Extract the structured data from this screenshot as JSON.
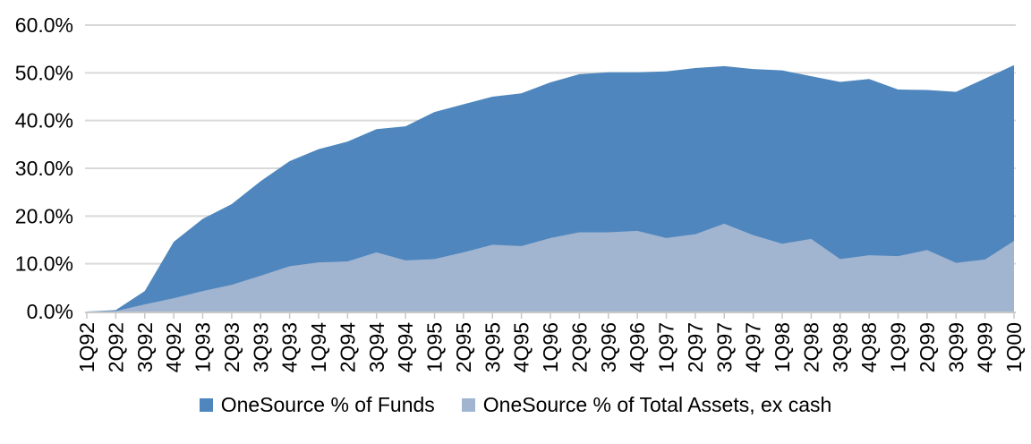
{
  "chart_data": {
    "type": "area",
    "title": "",
    "xlabel": "",
    "ylabel": "",
    "ylim": [
      0,
      60
    ],
    "ytick_step": 10,
    "ytick_labels": [
      "0.0%",
      "10.0%",
      "20.0%",
      "30.0%",
      "40.0%",
      "50.0%",
      "60.0%"
    ],
    "grid": true,
    "legend_position": "bottom",
    "overlay_mode": "overlaid (not stacked); second series drawn in front of first",
    "categories": [
      "1Q92",
      "2Q92",
      "3Q92",
      "4Q92",
      "1Q93",
      "2Q93",
      "3Q93",
      "4Q93",
      "1Q94",
      "2Q94",
      "3Q94",
      "4Q94",
      "1Q95",
      "2Q95",
      "3Q95",
      "4Q95",
      "1Q96",
      "2Q96",
      "3Q96",
      "4Q96",
      "1Q97",
      "2Q97",
      "3Q97",
      "4Q97",
      "1Q98",
      "2Q98",
      "3Q98",
      "4Q98",
      "1Q99",
      "2Q99",
      "3Q99",
      "4Q99",
      "1Q00"
    ],
    "series": [
      {
        "name": "OneSource % of Funds",
        "color": "#4E86BD",
        "values": [
          0.0,
          0.3,
          4.3,
          14.6,
          19.4,
          22.5,
          27.3,
          31.5,
          34.0,
          35.6,
          38.2,
          38.8,
          41.8,
          43.4,
          45.0,
          45.7,
          48.0,
          49.7,
          50.1,
          50.1,
          50.3,
          51.0,
          51.4,
          50.8,
          50.5,
          49.3,
          48.1,
          48.7,
          46.5,
          46.4,
          46.0,
          48.8,
          51.6
        ]
      },
      {
        "name": "OneSource % of Total Assets, ex cash",
        "color": "#A1B4D0",
        "values": [
          0.0,
          0.1,
          1.5,
          2.8,
          4.3,
          5.6,
          7.5,
          9.5,
          10.3,
          10.5,
          12.4,
          10.7,
          11.0,
          12.4,
          14.0,
          13.7,
          15.4,
          16.6,
          16.6,
          16.9,
          15.4,
          16.2,
          18.4,
          16.0,
          14.2,
          15.2,
          11.0,
          11.8,
          11.6,
          12.9,
          10.2,
          10.9,
          14.8
        ]
      }
    ]
  },
  "colors": {
    "background": "#FFFFFF",
    "gridline": "#D9D9D9",
    "axis_line": "#C8C8C8",
    "text": "#000000"
  },
  "legend": {
    "items": [
      {
        "label": "OneSource % of Funds"
      },
      {
        "label": "OneSource % of Total Assets, ex cash"
      }
    ]
  }
}
